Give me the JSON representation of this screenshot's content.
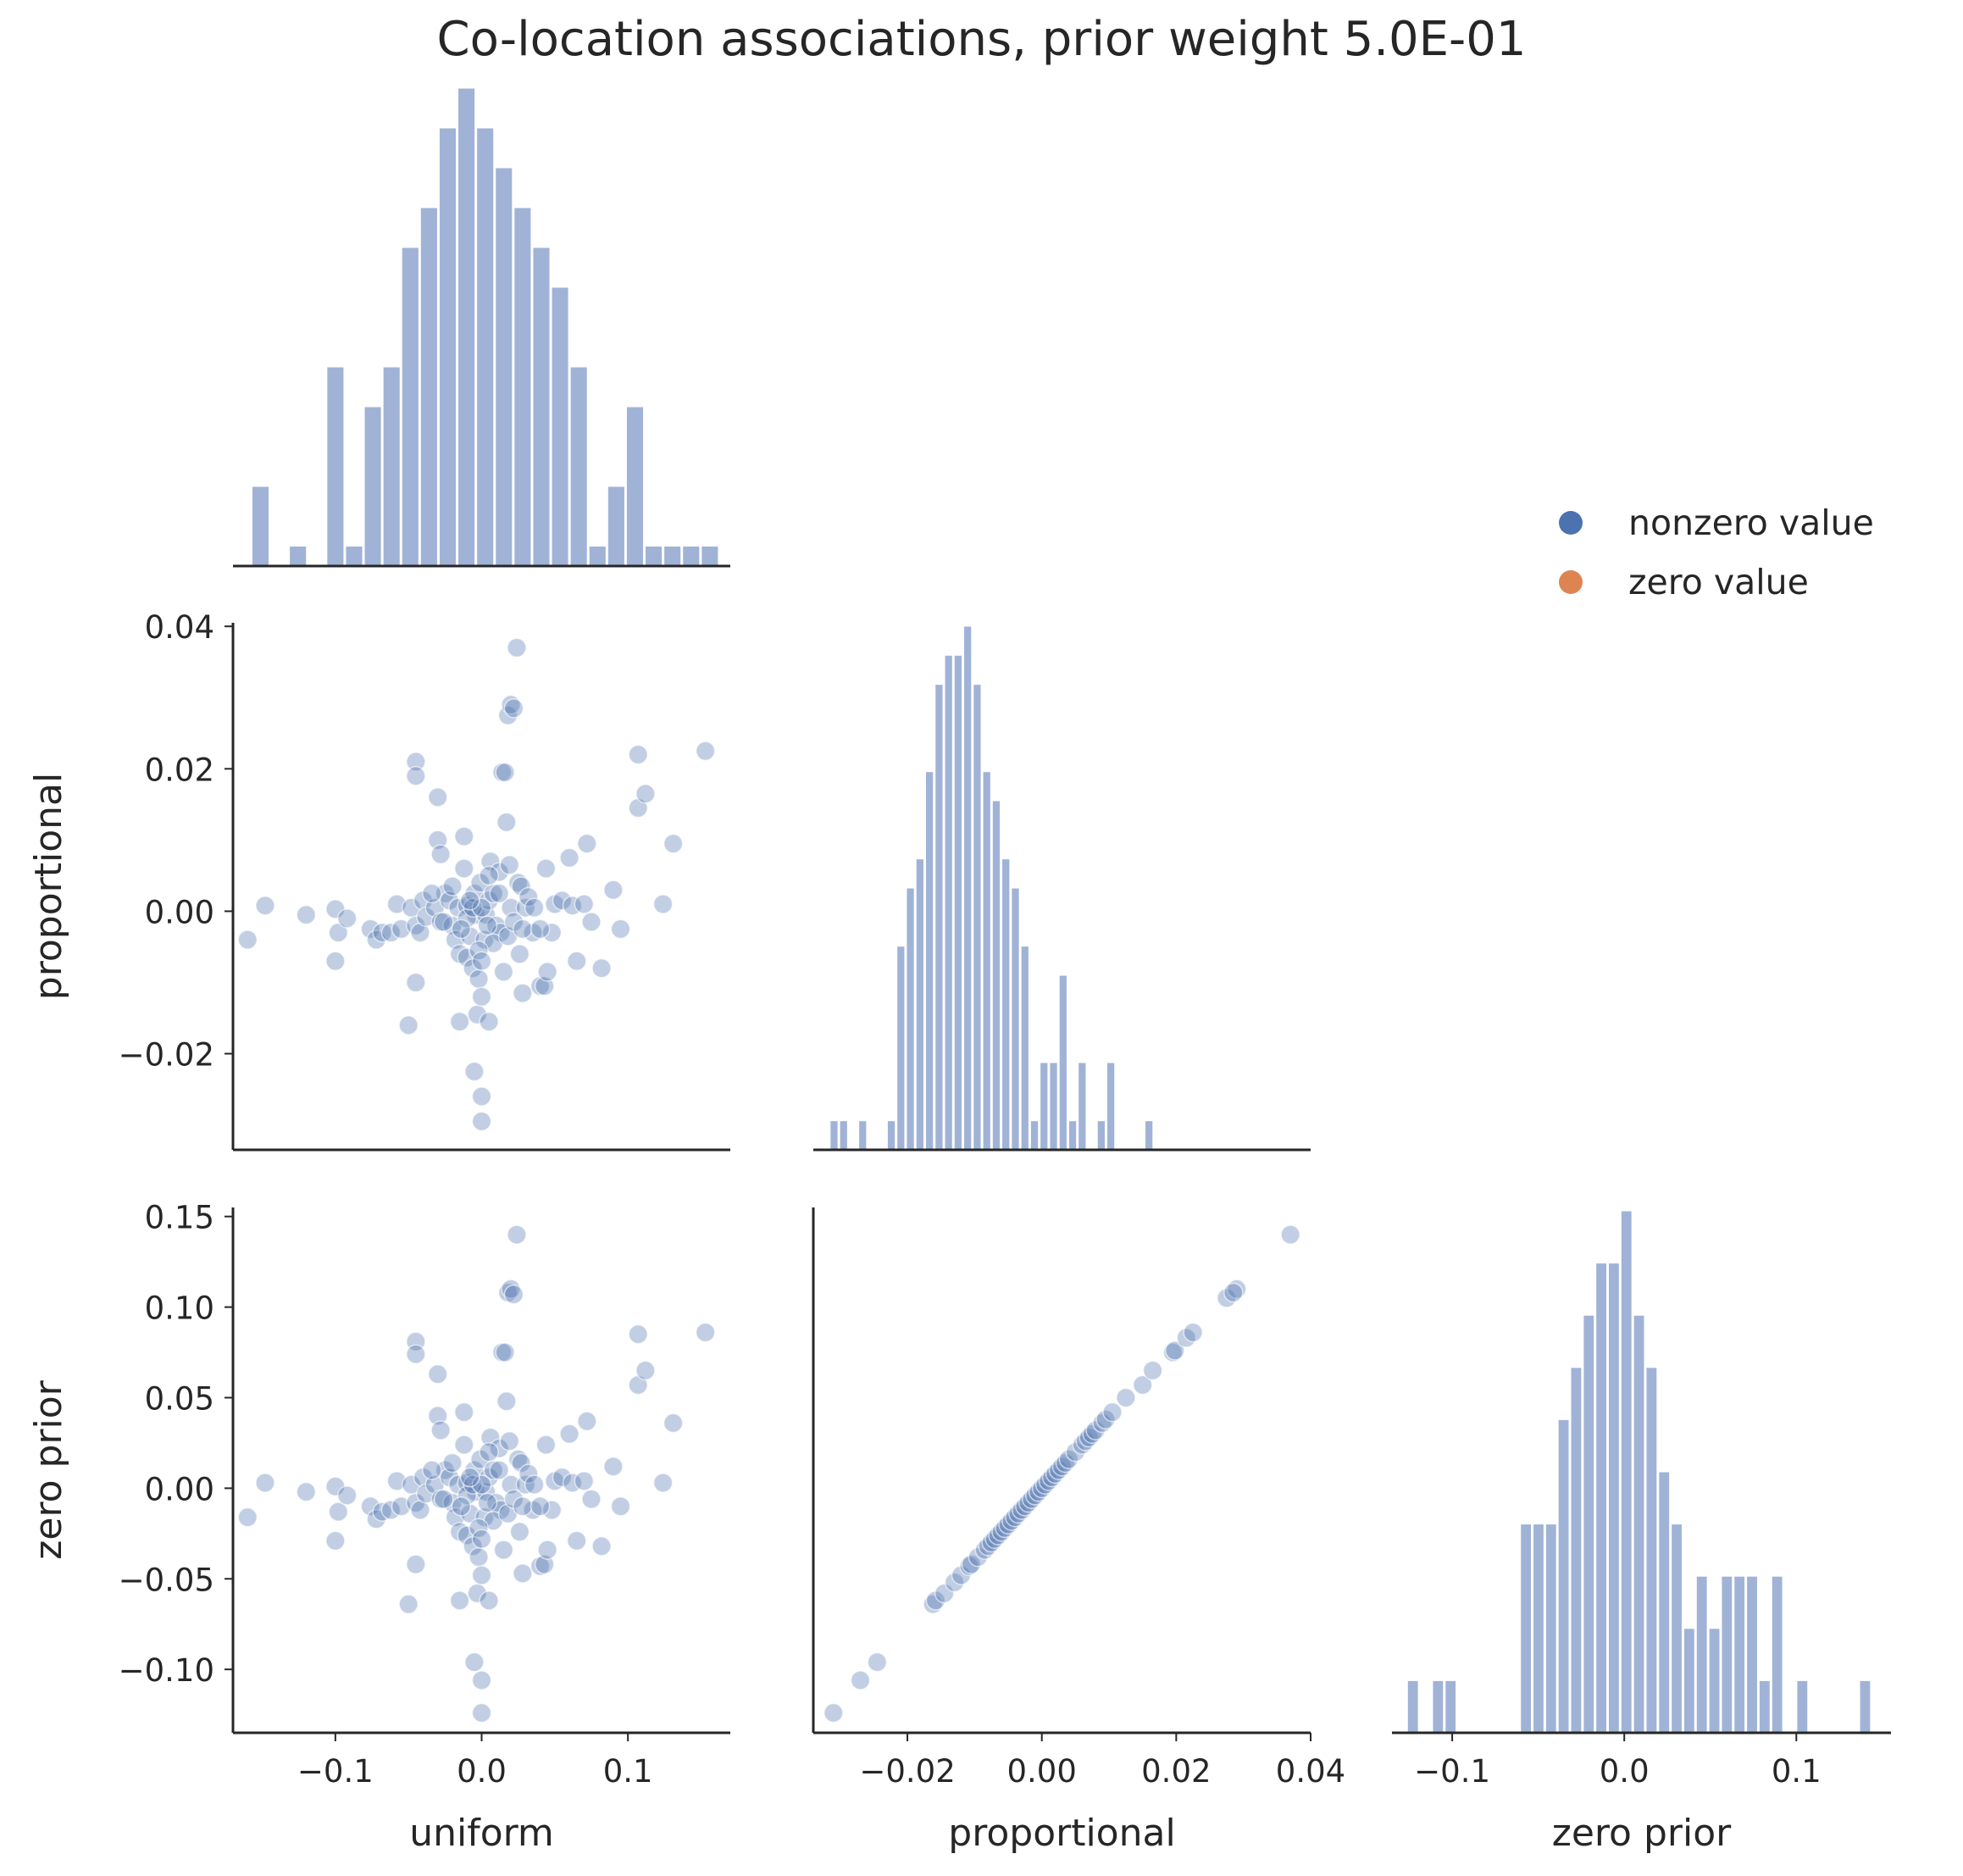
{
  "title": "Co-location associations, prior weight 5.0E-01",
  "colors": {
    "nonzero": "#4c72b0",
    "zero": "#dd8452",
    "hist": "#a0b3d6",
    "axis": "#262626",
    "text": "#262626"
  },
  "legend": {
    "items": [
      {
        "label": "nonzero value",
        "color": "#4c72b0"
      },
      {
        "label": "zero value",
        "color": "#dd8452"
      }
    ],
    "placement": "right"
  },
  "chart_data": [
    {
      "type": "histogram",
      "variable": "uniform",
      "row": 0,
      "col": 0,
      "xlim": [
        -0.17,
        0.17
      ],
      "bin_start": -0.157,
      "bin_width": 0.0128,
      "counts": [
        2,
        0,
        0.5,
        0,
        5,
        0.5,
        4,
        5,
        8,
        9,
        11,
        12,
        11,
        10,
        9,
        8,
        7,
        5,
        0.5,
        2,
        4,
        0.5,
        0.5,
        0.5,
        0.5
      ]
    },
    {
      "type": "histogram",
      "variable": "proportional",
      "row": 1,
      "col": 1,
      "xlim": [
        -0.034,
        0.04
      ],
      "bin_start": -0.0315,
      "bin_width": 0.00142,
      "counts": [
        1,
        1,
        0,
        1,
        0,
        0,
        1,
        7,
        9,
        10,
        13,
        16,
        17,
        17,
        18,
        16,
        13,
        12,
        10,
        9,
        7,
        1,
        3,
        3,
        6,
        1,
        3,
        0,
        1,
        3,
        0,
        0,
        0,
        1
      ]
    },
    {
      "type": "histogram",
      "variable": "zero prior",
      "row": 2,
      "col": 2,
      "xlim": [
        -0.135,
        0.155
      ],
      "bin_start": -0.126,
      "bin_width": 0.0073,
      "counts": [
        1,
        0,
        1,
        1,
        0,
        0,
        0,
        0,
        0,
        4,
        4,
        4,
        6,
        7,
        8,
        9,
        9,
        10,
        8,
        7,
        5,
        4,
        2,
        3,
        2,
        3,
        3,
        3,
        1,
        3,
        0,
        1,
        0,
        0,
        0,
        0,
        1
      ]
    },
    {
      "type": "scatter",
      "x_variable": "uniform",
      "y_variable": "proportional",
      "row": 1,
      "col": 0,
      "xlim": [
        -0.17,
        0.17
      ],
      "ylim": [
        -0.0335,
        0.0405
      ],
      "points": [
        [
          -0.16,
          -0.004
        ],
        [
          -0.148,
          0.0008
        ],
        [
          -0.12,
          -0.0005
        ],
        [
          -0.1,
          0.0003
        ],
        [
          -0.098,
          -0.003
        ],
        [
          -0.1,
          -0.007
        ],
        [
          -0.092,
          -0.001
        ],
        [
          -0.076,
          -0.0025
        ],
        [
          -0.072,
          -0.004
        ],
        [
          -0.068,
          -0.003
        ],
        [
          -0.062,
          -0.003
        ],
        [
          -0.058,
          0.001
        ],
        [
          -0.055,
          -0.0025
        ],
        [
          -0.048,
          0.0005
        ],
        [
          -0.045,
          -0.002
        ],
        [
          -0.042,
          -0.003
        ],
        [
          -0.04,
          0.0015
        ],
        [
          -0.038,
          -0.0008
        ],
        [
          -0.05,
          -0.016
        ],
        [
          -0.045,
          -0.01
        ],
        [
          -0.045,
          0.021
        ],
        [
          -0.045,
          0.019
        ],
        [
          -0.03,
          0.016
        ],
        [
          -0.03,
          0.01
        ],
        [
          -0.028,
          0.008
        ],
        [
          -0.032,
          0.0005
        ],
        [
          -0.028,
          -0.0015
        ],
        [
          -0.025,
          0.0025
        ],
        [
          -0.022,
          0.0015
        ],
        [
          -0.02,
          0.0035
        ],
        [
          -0.02,
          -0.002
        ],
        [
          -0.018,
          -0.004
        ],
        [
          -0.016,
          0.0005
        ],
        [
          -0.015,
          -0.006
        ],
        [
          -0.015,
          -0.0155
        ],
        [
          -0.012,
          0.0105
        ],
        [
          -0.012,
          0.006
        ],
        [
          -0.01,
          -0.0065
        ],
        [
          -0.01,
          0.0008
        ],
        [
          -0.008,
          -0.0035
        ],
        [
          -0.006,
          -0.008
        ],
        [
          -0.005,
          0.0025
        ],
        [
          -0.005,
          -0.0225
        ],
        [
          -0.004,
          -0.0005
        ],
        [
          -0.003,
          -0.0145
        ],
        [
          -0.002,
          -0.0095
        ],
        [
          -0.001,
          0.004
        ],
        [
          0.0,
          -0.012
        ],
        [
          0.0,
          -0.026
        ],
        [
          0.0,
          -0.0295
        ],
        [
          0.002,
          -0.004
        ],
        [
          0.003,
          -0.0005
        ],
        [
          0.005,
          -0.0155
        ],
        [
          0.005,
          0.0015
        ],
        [
          0.006,
          0.007
        ],
        [
          0.008,
          0.0025
        ],
        [
          0.01,
          -0.002
        ],
        [
          0.012,
          0.0055
        ],
        [
          0.013,
          -0.003
        ],
        [
          0.014,
          0.0195
        ],
        [
          0.016,
          0.0195
        ],
        [
          0.017,
          0.0125
        ],
        [
          0.018,
          0.0275
        ],
        [
          0.019,
          0.0065
        ],
        [
          0.02,
          0.029
        ],
        [
          0.022,
          0.0285
        ],
        [
          0.02,
          0.0005
        ],
        [
          0.024,
          0.037
        ],
        [
          0.025,
          0.004
        ],
        [
          0.026,
          -0.006
        ],
        [
          0.027,
          0.0035
        ],
        [
          0.028,
          -0.0115
        ],
        [
          0.03,
          0.0005
        ],
        [
          0.032,
          0.002
        ],
        [
          0.035,
          -0.003
        ],
        [
          0.04,
          -0.0105
        ],
        [
          0.043,
          -0.0105
        ],
        [
          0.045,
          -0.0085
        ],
        [
          0.044,
          0.006
        ],
        [
          0.048,
          -0.003
        ],
        [
          0.05,
          0.001
        ],
        [
          0.055,
          0.0015
        ],
        [
          0.06,
          0.0075
        ],
        [
          0.062,
          0.0008
        ],
        [
          0.065,
          -0.007
        ],
        [
          0.07,
          0.001
        ],
        [
          0.072,
          0.0095
        ],
        [
          0.075,
          -0.0015
        ],
        [
          0.082,
          -0.008
        ],
        [
          0.09,
          0.003
        ],
        [
          0.095,
          -0.0025
        ],
        [
          0.107,
          0.022
        ],
        [
          0.107,
          0.0145
        ],
        [
          0.112,
          0.0165
        ],
        [
          0.124,
          0.001
        ],
        [
          0.131,
          0.0095
        ],
        [
          0.153,
          0.0225
        ],
        [
          -0.01,
          -0.001
        ],
        [
          -0.006,
          0.0005
        ],
        [
          0.0,
          0.0005
        ],
        [
          0.004,
          -0.002
        ],
        [
          -0.014,
          -0.0025
        ],
        [
          0.008,
          -0.0045
        ],
        [
          0.018,
          -0.0035
        ],
        [
          0.022,
          -0.0015
        ],
        [
          -0.002,
          -0.0055
        ],
        [
          0.012,
          0.0025
        ],
        [
          0.028,
          -0.0025
        ],
        [
          0.036,
          0.0005
        ],
        [
          0.04,
          -0.0025
        ],
        [
          -0.026,
          -0.0015
        ],
        [
          -0.034,
          0.0025
        ],
        [
          -0.008,
          0.0015
        ],
        [
          0.0,
          -0.007
        ],
        [
          0.015,
          -0.0085
        ],
        [
          0.005,
          0.005
        ]
      ]
    },
    {
      "type": "scatter",
      "x_variable": "uniform",
      "y_variable": "zero prior",
      "row": 2,
      "col": 0,
      "xlim": [
        -0.17,
        0.17
      ],
      "ylim": [
        -0.135,
        0.155
      ],
      "points": [
        [
          -0.16,
          -0.016
        ],
        [
          -0.148,
          0.003
        ],
        [
          -0.12,
          -0.002
        ],
        [
          -0.1,
          0.001
        ],
        [
          -0.098,
          -0.013
        ],
        [
          -0.1,
          -0.029
        ],
        [
          -0.092,
          -0.004
        ],
        [
          -0.076,
          -0.01
        ],
        [
          -0.072,
          -0.017
        ],
        [
          -0.068,
          -0.013
        ],
        [
          -0.062,
          -0.012
        ],
        [
          -0.058,
          0.004
        ],
        [
          -0.055,
          -0.01
        ],
        [
          -0.048,
          0.002
        ],
        [
          -0.045,
          -0.008
        ],
        [
          -0.042,
          -0.012
        ],
        [
          -0.04,
          0.006
        ],
        [
          -0.038,
          -0.003
        ],
        [
          -0.05,
          -0.064
        ],
        [
          -0.045,
          -0.042
        ],
        [
          -0.045,
          0.081
        ],
        [
          -0.045,
          0.074
        ],
        [
          -0.03,
          0.063
        ],
        [
          -0.03,
          0.04
        ],
        [
          -0.028,
          0.032
        ],
        [
          -0.032,
          0.002
        ],
        [
          -0.028,
          -0.006
        ],
        [
          -0.025,
          0.01
        ],
        [
          -0.022,
          0.006
        ],
        [
          -0.02,
          0.014
        ],
        [
          -0.02,
          -0.008
        ],
        [
          -0.018,
          -0.016
        ],
        [
          -0.016,
          0.002
        ],
        [
          -0.015,
          -0.024
        ],
        [
          -0.015,
          -0.062
        ],
        [
          -0.012,
          0.042
        ],
        [
          -0.012,
          0.024
        ],
        [
          -0.01,
          -0.026
        ],
        [
          -0.01,
          0.003
        ],
        [
          -0.008,
          -0.014
        ],
        [
          -0.006,
          -0.032
        ],
        [
          -0.005,
          0.01
        ],
        [
          -0.005,
          -0.096
        ],
        [
          -0.004,
          -0.002
        ],
        [
          -0.003,
          -0.058
        ],
        [
          -0.002,
          -0.038
        ],
        [
          -0.001,
          0.016
        ],
        [
          0.0,
          -0.048
        ],
        [
          0.0,
          -0.106
        ],
        [
          0.0,
          -0.124
        ],
        [
          0.002,
          -0.016
        ],
        [
          0.003,
          -0.002
        ],
        [
          0.005,
          -0.062
        ],
        [
          0.005,
          0.006
        ],
        [
          0.006,
          0.028
        ],
        [
          0.008,
          0.01
        ],
        [
          0.01,
          -0.008
        ],
        [
          0.012,
          0.022
        ],
        [
          0.013,
          -0.012
        ],
        [
          0.014,
          0.075
        ],
        [
          0.016,
          0.075
        ],
        [
          0.017,
          0.048
        ],
        [
          0.018,
          0.108
        ],
        [
          0.019,
          0.026
        ],
        [
          0.02,
          0.11
        ],
        [
          0.022,
          0.107
        ],
        [
          0.02,
          0.002
        ],
        [
          0.024,
          0.14
        ],
        [
          0.025,
          0.016
        ],
        [
          0.026,
          -0.024
        ],
        [
          0.027,
          0.014
        ],
        [
          0.028,
          -0.047
        ],
        [
          0.03,
          0.002
        ],
        [
          0.032,
          0.008
        ],
        [
          0.035,
          -0.012
        ],
        [
          0.04,
          -0.043
        ],
        [
          0.043,
          -0.042
        ],
        [
          0.045,
          -0.034
        ],
        [
          0.044,
          0.024
        ],
        [
          0.048,
          -0.012
        ],
        [
          0.05,
          0.004
        ],
        [
          0.055,
          0.006
        ],
        [
          0.06,
          0.03
        ],
        [
          0.062,
          0.003
        ],
        [
          0.065,
          -0.029
        ],
        [
          0.07,
          0.004
        ],
        [
          0.072,
          0.037
        ],
        [
          0.075,
          -0.006
        ],
        [
          0.082,
          -0.032
        ],
        [
          0.09,
          0.012
        ],
        [
          0.095,
          -0.01
        ],
        [
          0.107,
          0.085
        ],
        [
          0.107,
          0.057
        ],
        [
          0.112,
          0.065
        ],
        [
          0.124,
          0.003
        ],
        [
          0.131,
          0.036
        ],
        [
          0.153,
          0.086
        ],
        [
          -0.01,
          -0.004
        ],
        [
          -0.006,
          0.002
        ],
        [
          0.0,
          0.002
        ],
        [
          0.004,
          -0.008
        ],
        [
          -0.014,
          -0.01
        ],
        [
          0.008,
          -0.018
        ],
        [
          0.018,
          -0.014
        ],
        [
          0.022,
          -0.006
        ],
        [
          -0.002,
          -0.022
        ],
        [
          0.012,
          0.01
        ],
        [
          0.028,
          -0.01
        ],
        [
          0.036,
          0.002
        ],
        [
          0.04,
          -0.01
        ],
        [
          -0.026,
          -0.006
        ],
        [
          -0.034,
          0.01
        ],
        [
          -0.008,
          0.006
        ],
        [
          0.0,
          -0.028
        ],
        [
          0.015,
          -0.034
        ],
        [
          0.005,
          0.02
        ]
      ]
    },
    {
      "type": "scatter",
      "x_variable": "proportional",
      "y_variable": "zero prior",
      "row": 2,
      "col": 1,
      "xlim": [
        -0.034,
        0.04
      ],
      "ylim": [
        -0.135,
        0.155
      ],
      "points": [
        [
          -0.031,
          -0.124
        ],
        [
          -0.027,
          -0.106
        ],
        [
          -0.0245,
          -0.096
        ],
        [
          -0.0162,
          -0.064
        ],
        [
          -0.0158,
          -0.062
        ],
        [
          -0.0145,
          -0.058
        ],
        [
          -0.013,
          -0.052
        ],
        [
          -0.012,
          -0.048
        ],
        [
          -0.0108,
          -0.043
        ],
        [
          -0.0105,
          -0.042
        ],
        [
          -0.0095,
          -0.038
        ],
        [
          -0.0085,
          -0.034
        ],
        [
          -0.008,
          -0.032
        ],
        [
          -0.0075,
          -0.03
        ],
        [
          -0.007,
          -0.028
        ],
        [
          -0.0065,
          -0.026
        ],
        [
          -0.006,
          -0.024
        ],
        [
          -0.0055,
          -0.022
        ],
        [
          -0.005,
          -0.02
        ],
        [
          -0.0045,
          -0.018
        ],
        [
          -0.004,
          -0.016
        ],
        [
          -0.0035,
          -0.014
        ],
        [
          -0.003,
          -0.012
        ],
        [
          -0.0025,
          -0.01
        ],
        [
          -0.002,
          -0.008
        ],
        [
          -0.0015,
          -0.006
        ],
        [
          -0.001,
          -0.004
        ],
        [
          -0.0005,
          -0.002
        ],
        [
          0.0,
          0.0
        ],
        [
          0.0005,
          0.002
        ],
        [
          0.001,
          0.004
        ],
        [
          0.0015,
          0.006
        ],
        [
          0.002,
          0.008
        ],
        [
          0.0025,
          0.01
        ],
        [
          0.003,
          0.012
        ],
        [
          0.0035,
          0.014
        ],
        [
          0.004,
          0.016
        ],
        [
          0.005,
          0.02
        ],
        [
          0.006,
          0.024
        ],
        [
          0.0065,
          0.026
        ],
        [
          0.007,
          0.028
        ],
        [
          0.0075,
          0.03
        ],
        [
          0.008,
          0.032
        ],
        [
          0.009,
          0.036
        ],
        [
          0.0095,
          0.038
        ],
        [
          0.0105,
          0.042
        ],
        [
          0.0125,
          0.05
        ],
        [
          0.015,
          0.057
        ],
        [
          0.0165,
          0.065
        ],
        [
          0.0195,
          0.075
        ],
        [
          0.0198,
          0.076
        ],
        [
          0.0215,
          0.083
        ],
        [
          0.0225,
          0.086
        ],
        [
          0.0275,
          0.105
        ],
        [
          0.029,
          0.11
        ],
        [
          0.0285,
          0.108
        ],
        [
          0.037,
          0.14
        ]
      ]
    }
  ],
  "axes_labels": {
    "x": [
      "uniform",
      "proportional",
      "zero prior"
    ],
    "y": [
      "proportional",
      "zero prior"
    ]
  },
  "ticks": {
    "uniform_x": [
      "−0.1",
      "0.0",
      "0.1"
    ],
    "proportional_x": [
      "−0.02",
      "0.00",
      "0.02",
      "0.04"
    ],
    "zero_prior_x": [
      "−0.1",
      "0.0",
      "0.1"
    ],
    "proportional_y": [
      "−0.02",
      "0.00",
      "0.02",
      "0.04"
    ],
    "zero_prior_y": [
      "−0.10",
      "−0.05",
      "0.00",
      "0.05",
      "0.10",
      "0.15"
    ]
  }
}
